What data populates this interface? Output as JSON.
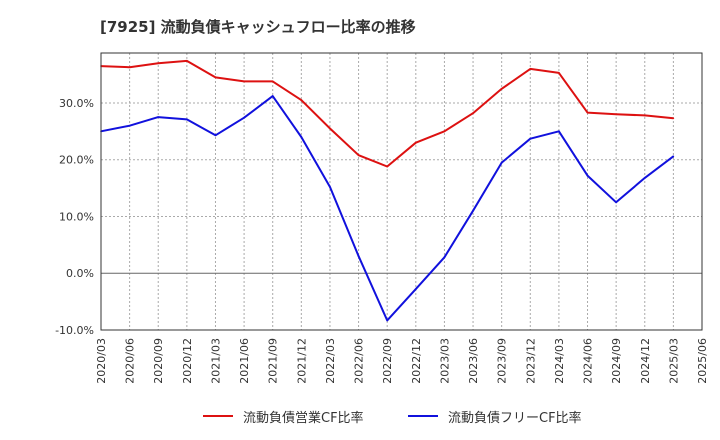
{
  "chart_data": {
    "type": "line",
    "title": "[7925]  流動負債キャッシュフロー比率の推移",
    "xlabel": "",
    "ylabel": "",
    "ylim": [
      -10,
      38.8
    ],
    "yticks": [
      -10,
      0,
      10,
      20,
      30
    ],
    "ytick_labels": [
      "-10.0%",
      "0.0%",
      "10.0%",
      "20.0%",
      "30.0%"
    ],
    "x": [
      "2020/03",
      "2020/06",
      "2020/09",
      "2020/12",
      "2021/03",
      "2021/06",
      "2021/09",
      "2021/12",
      "2022/03",
      "2022/06",
      "2022/09",
      "2022/12",
      "2023/03",
      "2023/06",
      "2023/09",
      "2023/12",
      "2024/03",
      "2024/06",
      "2024/09",
      "2024/12",
      "2025/03",
      "2025/06"
    ],
    "grid": true,
    "legend_position": "bottom",
    "series": [
      {
        "name": "流動負債営業CF比率",
        "color": "#dd1111",
        "values": [
          36.5,
          36.3,
          37.0,
          37.4,
          34.5,
          33.8,
          33.8,
          30.5,
          25.5,
          20.8,
          18.8,
          23.0,
          25.0,
          28.2,
          32.5,
          36.0,
          35.3,
          28.3,
          28.0,
          27.8,
          27.3,
          null
        ]
      },
      {
        "name": "流動負債フリーCF比率",
        "color": "#1111dd",
        "values": [
          25.0,
          26.0,
          27.5,
          27.1,
          24.3,
          27.4,
          31.2,
          24.0,
          15.2,
          3.0,
          -8.3,
          -2.8,
          2.8,
          11.0,
          19.5,
          23.7,
          25.0,
          17.2,
          12.5,
          16.8,
          20.6,
          null
        ]
      }
    ]
  }
}
